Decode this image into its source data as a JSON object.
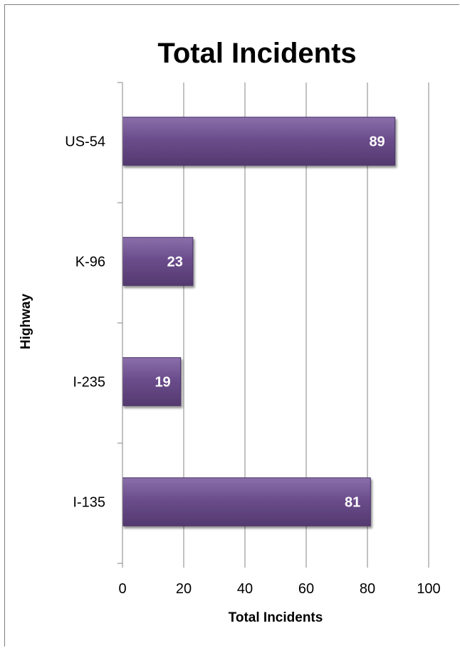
{
  "chart_data": {
    "type": "bar",
    "orientation": "horizontal",
    "title": "Total Incidents",
    "xlabel": "Total Incidents",
    "ylabel": "Highway",
    "categories": [
      "US-54",
      "K-96",
      "I-235",
      "I-135"
    ],
    "values": [
      89,
      23,
      19,
      81
    ],
    "xlim": [
      0,
      100
    ],
    "xticks": [
      0,
      20,
      40,
      60,
      80,
      100
    ],
    "grid": true,
    "legend": "none",
    "bar_color": "#6b4d8c",
    "bar_edge_color": "#4a3266",
    "label_color": "#ffffff"
  }
}
